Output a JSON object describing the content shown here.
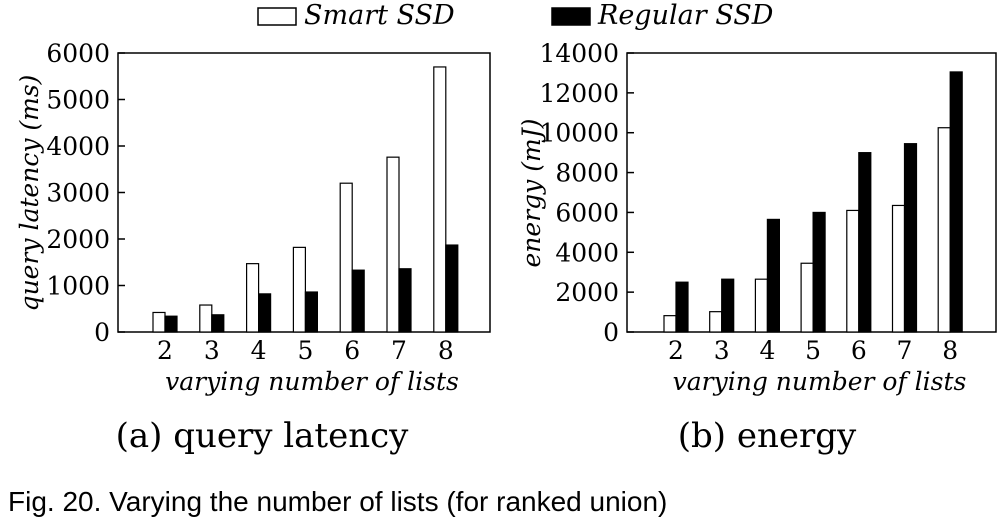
{
  "legend": [
    {
      "label": "Smart SSD",
      "fill": "#ffffff"
    },
    {
      "label": "Regular SSD",
      "fill": "#000000"
    }
  ],
  "caption": "Fig. 20. Varying the number of lists (for ranked union)",
  "chart_data": [
    {
      "type": "bar",
      "subcaption": "(a) query latency",
      "categories": [
        "2",
        "3",
        "4",
        "5",
        "6",
        "7",
        "8"
      ],
      "series": [
        {
          "name": "Smart SSD",
          "values": [
            420,
            580,
            1470,
            1820,
            3200,
            3760,
            5700
          ]
        },
        {
          "name": "Regular SSD",
          "values": [
            340,
            370,
            820,
            860,
            1330,
            1360,
            1870
          ]
        }
      ],
      "xlabel": "varying number of lists",
      "ylabel": "query latency (ms)",
      "ylim": [
        0,
        6000
      ],
      "yticks": [
        "0",
        "1000",
        "2000",
        "3000",
        "4000",
        "5000",
        "6000"
      ],
      "grid": false
    },
    {
      "type": "bar",
      "subcaption": "(b) energy",
      "categories": [
        "2",
        "3",
        "4",
        "5",
        "6",
        "7",
        "8"
      ],
      "series": [
        {
          "name": "Smart SSD",
          "values": [
            820,
            1020,
            2650,
            3450,
            6100,
            6350,
            10250
          ]
        },
        {
          "name": "Regular SSD",
          "values": [
            2500,
            2650,
            5650,
            6000,
            9000,
            9450,
            13050
          ]
        }
      ],
      "xlabel": "varying number of lists",
      "ylabel": "energy (mJ)",
      "ylim": [
        0,
        14000
      ],
      "yticks": [
        "0",
        "2000",
        "4000",
        "6000",
        "8000",
        "10000",
        "12000",
        "14000"
      ],
      "grid": false
    }
  ]
}
